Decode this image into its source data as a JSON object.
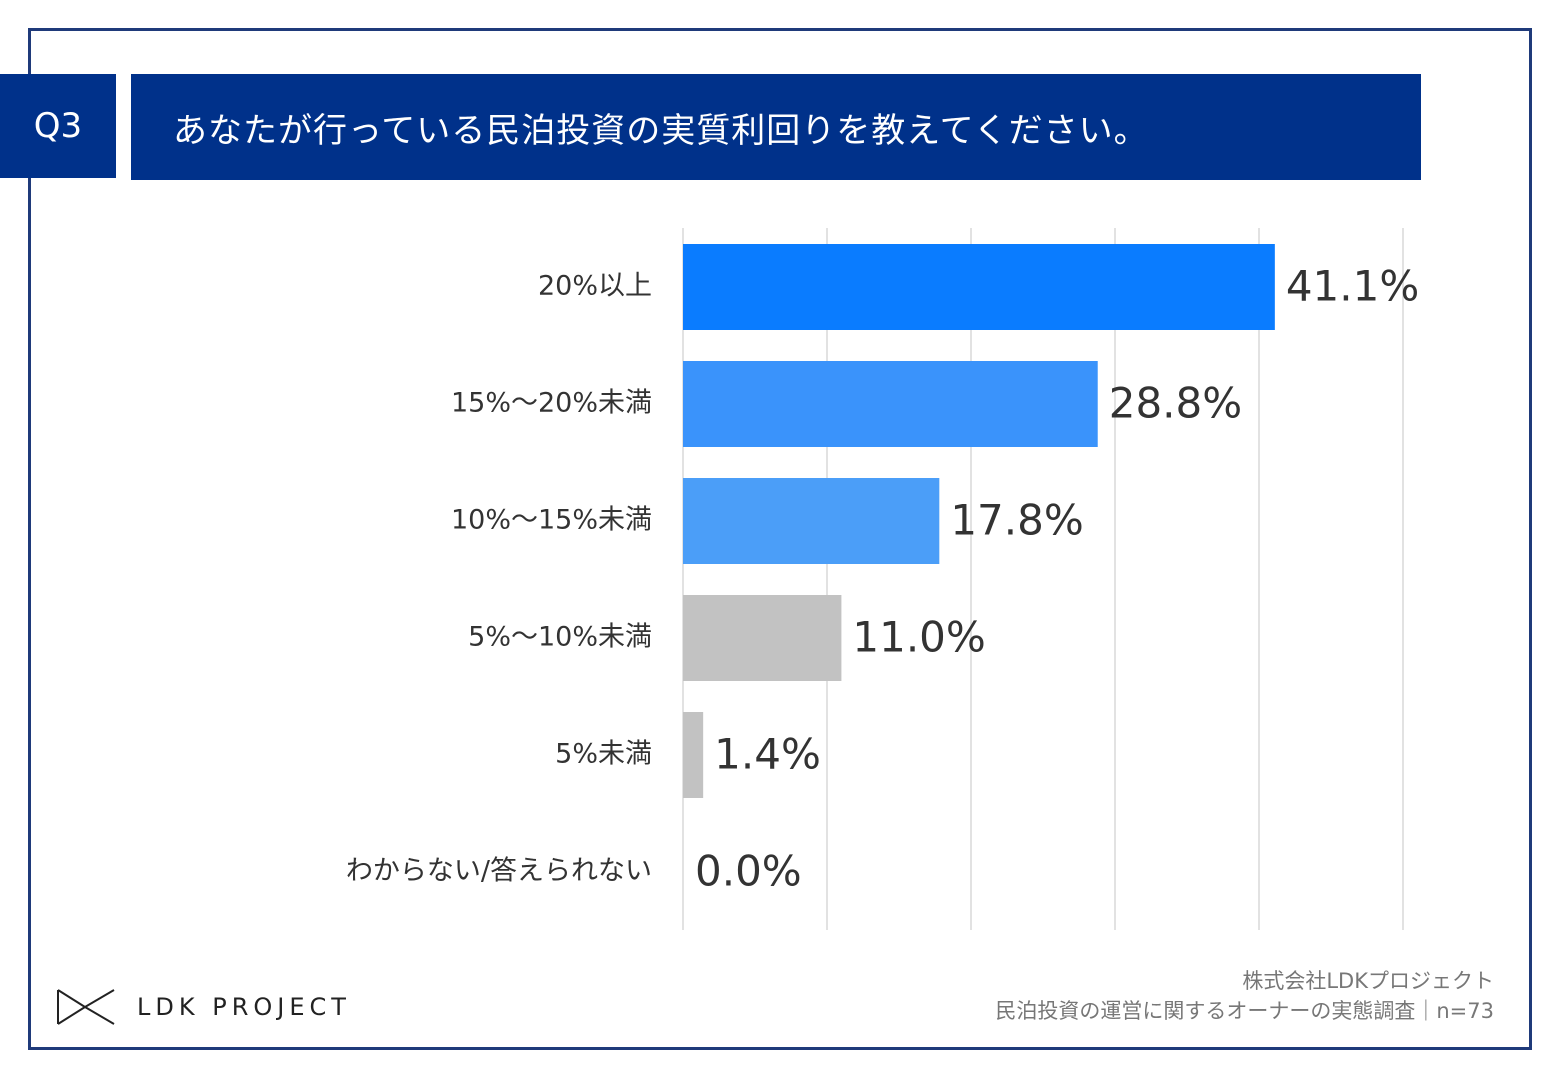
{
  "header": {
    "question_number": "Q3",
    "question_text": "あなたが行っている民泊投資の実質利回りを教えてください。"
  },
  "chart_data": {
    "type": "bar",
    "orientation": "horizontal",
    "title": "あなたが行っている民泊投資の実質利回りを教えてください。",
    "categories": [
      "20%以上",
      "15%～20%未満",
      "10%～15%未満",
      "5%～10%未満",
      "5%未満",
      "わからない/答えられない"
    ],
    "values": [
      41.1,
      28.8,
      17.8,
      11.0,
      1.4,
      0.0
    ],
    "value_labels": [
      "41.1%",
      "28.8%",
      "17.8%",
      "11.0%",
      "1.4%",
      "0.0%"
    ],
    "bar_colors": [
      "#0a7cff",
      "#3a93fb",
      "#4b9ef8",
      "#c2c2c2",
      "#c2c2c2",
      "#c2c2c2"
    ],
    "xlim": [
      0,
      50
    ],
    "gridlines": [
      0,
      10,
      20,
      30,
      40,
      50
    ],
    "grid": true,
    "xlabel": "",
    "ylabel": ""
  },
  "footer": {
    "logo_text": "LDK PROJECT",
    "source_company": "株式会社LDKプロジェクト",
    "source_survey": "民泊投資の運営に関するオーナーの実態調査｜n=73"
  }
}
